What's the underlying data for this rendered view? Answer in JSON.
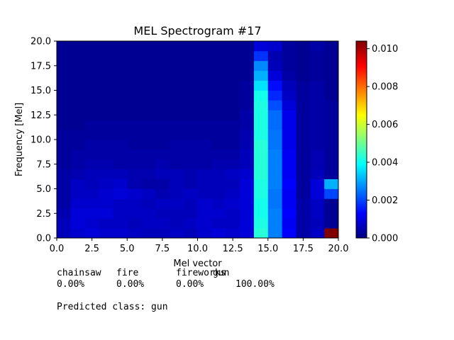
{
  "chart_data": [
    {
      "type": "heatmap",
      "title": "MEL Spectrogram #17",
      "xlabel": "Mel vector",
      "ylabel": "Frequency [Mel]",
      "xlim": [
        0,
        20
      ],
      "ylim": [
        0,
        20
      ],
      "xticks": [
        "0.0",
        "2.5",
        "5.0",
        "7.5",
        "10.0",
        "12.5",
        "15.0",
        "17.5",
        "20.0"
      ],
      "yticks": [
        "0.0",
        "2.5",
        "5.0",
        "7.5",
        "10.0",
        "12.5",
        "15.0",
        "17.5",
        "20.0"
      ],
      "colormap": "jet",
      "colorbar": {
        "min": 0,
        "max": 0.0104,
        "ticks": [
          "0.000",
          "0.002",
          "0.004",
          "0.006",
          "0.008",
          "0.010"
        ]
      },
      "grid": false,
      "values": [
        [
          0.0006,
          0.0008,
          0.0009,
          0.0008,
          0.0008,
          0.0007,
          0.0006,
          0.0006,
          0.0007,
          0.0006,
          0.0008,
          0.0009,
          0.0008,
          0.0009,
          0.0043,
          0.0026,
          0.0013,
          0.0004,
          0.0007,
          0.0104
        ],
        [
          0.0006,
          0.0009,
          0.0008,
          0.0007,
          0.0007,
          0.0006,
          0.0007,
          0.0007,
          0.0006,
          0.0007,
          0.0008,
          0.0007,
          0.0007,
          0.0009,
          0.0042,
          0.0026,
          0.0012,
          0.0004,
          0.0006,
          0.0002
        ],
        [
          0.0005,
          0.0009,
          0.0009,
          0.0009,
          0.0007,
          0.0007,
          0.0007,
          0.0006,
          0.0006,
          0.0006,
          0.0008,
          0.0008,
          0.0007,
          0.0009,
          0.0041,
          0.0026,
          0.0013,
          0.0004,
          0.0007,
          0.0002
        ],
        [
          0.0004,
          0.0008,
          0.0008,
          0.0008,
          0.0007,
          0.0007,
          0.0006,
          0.0007,
          0.0007,
          0.0006,
          0.0008,
          0.0007,
          0.0008,
          0.0009,
          0.0041,
          0.0025,
          0.0012,
          0.0004,
          0.0007,
          0.0002
        ],
        [
          0.0004,
          0.0007,
          0.0007,
          0.0008,
          0.0009,
          0.0008,
          0.0007,
          0.0005,
          0.0006,
          0.0007,
          0.0006,
          0.0006,
          0.0007,
          0.0009,
          0.0042,
          0.0025,
          0.0012,
          0.0003,
          0.0009,
          0.002
        ],
        [
          0.0004,
          0.0007,
          0.0006,
          0.0007,
          0.0008,
          0.0005,
          0.0004,
          0.0004,
          0.0006,
          0.0005,
          0.0006,
          0.0006,
          0.0006,
          0.0009,
          0.0042,
          0.0026,
          0.0013,
          0.0003,
          0.0009,
          0.0031
        ],
        [
          0.0004,
          0.0005,
          0.0006,
          0.0006,
          0.0006,
          0.0005,
          0.0005,
          0.0006,
          0.0006,
          0.0005,
          0.0006,
          0.0006,
          0.0007,
          0.0008,
          0.0043,
          0.0026,
          0.0012,
          0.0003,
          0.0006,
          0.0003
        ],
        [
          0.0003,
          0.0004,
          0.0005,
          0.0005,
          0.0004,
          0.0004,
          0.0004,
          0.0005,
          0.0004,
          0.0004,
          0.0004,
          0.0005,
          0.0005,
          0.0006,
          0.0043,
          0.0026,
          0.0012,
          0.0003,
          0.0005,
          0.0003
        ],
        [
          0.0003,
          0.0004,
          0.0004,
          0.0004,
          0.0004,
          0.0004,
          0.0004,
          0.0004,
          0.0004,
          0.0004,
          0.0004,
          0.0004,
          0.0004,
          0.0006,
          0.0043,
          0.0026,
          0.0012,
          0.0003,
          0.0005,
          0.0003
        ],
        [
          0.0003,
          0.0003,
          0.0004,
          0.0004,
          0.0004,
          0.0003,
          0.0003,
          0.0003,
          0.0004,
          0.0004,
          0.0004,
          0.0003,
          0.0003,
          0.0005,
          0.0043,
          0.0025,
          0.0011,
          0.0003,
          0.0004,
          0.0003
        ],
        [
          0.0003,
          0.0003,
          0.0003,
          0.0003,
          0.0003,
          0.0003,
          0.0003,
          0.0003,
          0.0003,
          0.0003,
          0.0003,
          0.0003,
          0.0003,
          0.0005,
          0.0042,
          0.0025,
          0.0011,
          0.0003,
          0.0004,
          0.0003
        ],
        [
          0.0002,
          0.0002,
          0.0003,
          0.0003,
          0.0003,
          0.0003,
          0.0003,
          0.0003,
          0.0003,
          0.0003,
          0.0003,
          0.0003,
          0.0003,
          0.0004,
          0.0042,
          0.0024,
          0.0011,
          0.0003,
          0.0004,
          0.0003
        ],
        [
          0.0002,
          0.0002,
          0.0002,
          0.0002,
          0.0002,
          0.0002,
          0.0002,
          0.0002,
          0.0002,
          0.0002,
          0.0002,
          0.0002,
          0.0002,
          0.0004,
          0.0042,
          0.0024,
          0.0011,
          0.0003,
          0.0004,
          0.0003
        ],
        [
          0.0002,
          0.0002,
          0.0002,
          0.0002,
          0.0002,
          0.0002,
          0.0002,
          0.0002,
          0.0002,
          0.0002,
          0.0002,
          0.0002,
          0.0002,
          0.0003,
          0.0042,
          0.0021,
          0.0009,
          0.0003,
          0.0004,
          0.0003
        ],
        [
          0.0002,
          0.0002,
          0.0002,
          0.0002,
          0.0002,
          0.0002,
          0.0002,
          0.0002,
          0.0002,
          0.0002,
          0.0002,
          0.0002,
          0.0002,
          0.0003,
          0.0041,
          0.0017,
          0.0007,
          0.0003,
          0.0004,
          0.0002
        ],
        [
          0.0002,
          0.0002,
          0.0002,
          0.0002,
          0.0002,
          0.0002,
          0.0002,
          0.0002,
          0.0002,
          0.0002,
          0.0002,
          0.0002,
          0.0002,
          0.0003,
          0.0036,
          0.0014,
          0.0006,
          0.0003,
          0.0004,
          0.0002
        ],
        [
          0.0002,
          0.0002,
          0.0002,
          0.0002,
          0.0002,
          0.0002,
          0.0002,
          0.0002,
          0.0002,
          0.0002,
          0.0002,
          0.0002,
          0.0002,
          0.0002,
          0.0031,
          0.0009,
          0.0004,
          0.0002,
          0.0003,
          0.0002
        ],
        [
          0.0002,
          0.0002,
          0.0002,
          0.0002,
          0.0002,
          0.0002,
          0.0002,
          0.0002,
          0.0002,
          0.0002,
          0.0002,
          0.0002,
          0.0002,
          0.0002,
          0.0027,
          0.0006,
          0.0003,
          0.0002,
          0.0003,
          0.0002
        ],
        [
          0.0002,
          0.0002,
          0.0002,
          0.0002,
          0.0002,
          0.0002,
          0.0002,
          0.0002,
          0.0002,
          0.0002,
          0.0002,
          0.0002,
          0.0002,
          0.0002,
          0.0018,
          0.0005,
          0.0003,
          0.0002,
          0.0003,
          0.0002
        ],
        [
          0.0002,
          0.0002,
          0.0002,
          0.0002,
          0.0002,
          0.0002,
          0.0002,
          0.0002,
          0.0002,
          0.0002,
          0.0002,
          0.0002,
          0.0002,
          0.0002,
          0.0009,
          0.0008,
          0.0003,
          0.0002,
          0.0004,
          0.0002
        ]
      ]
    },
    {
      "type": "table",
      "columns": [
        "chainsaw",
        "fire",
        "fireworks",
        "gun"
      ],
      "values": [
        "0.00%",
        "0.00%",
        "0.00%",
        "100.00%"
      ]
    }
  ],
  "prediction": {
    "text": "Predicted class: gun"
  },
  "colors": {
    "axis": "#000000",
    "background": "#ffffff"
  }
}
